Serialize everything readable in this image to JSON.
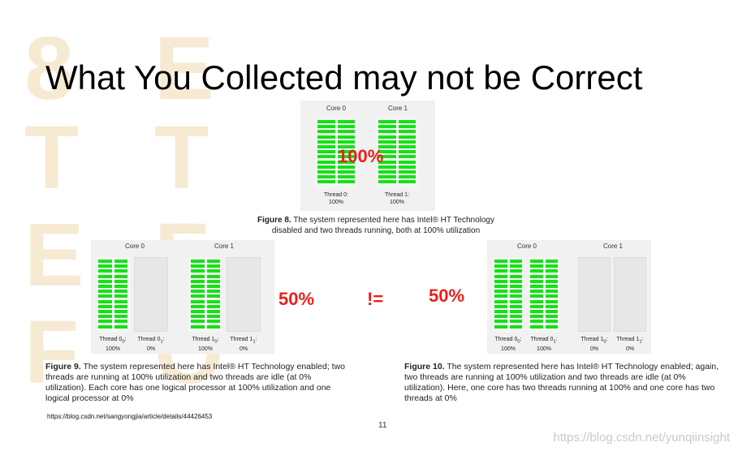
{
  "title": "What You Collected may not be Correct",
  "figure8": {
    "cores": [
      {
        "label": "Core 0",
        "thread_label": "Thread 0:",
        "thread_value": "100%"
      },
      {
        "label": "Core 1",
        "thread_label": "Thread 1:",
        "thread_value": "100%"
      }
    ],
    "overlay_pct": "100%",
    "caption_bold": "Figure 8.",
    "caption_text": " The system represented here has Intel® HT Technology disabled and two threads running, both at 100% utilization",
    "thread_utilization": [
      1.0,
      1.0
    ]
  },
  "figure9": {
    "cores": [
      {
        "label": "Core 0",
        "threads": [
          {
            "label": "Thread 0",
            "sub": "0",
            "value": "100%"
          },
          {
            "label": "Thread 0",
            "sub": "1",
            "value": "0%"
          }
        ]
      },
      {
        "label": "Core 1",
        "threads": [
          {
            "label": "Thread 1",
            "sub": "0",
            "value": "100%"
          },
          {
            "label": "Thread 1",
            "sub": "1",
            "value": "0%"
          }
        ]
      }
    ],
    "caption_bold": "Figure 9.",
    "caption_text": " The system represented here has Intel® HT Technology enabled; two threads are running at 100% utilization and two threads are idle (at 0% utilization). Each core has one logical processor at 100% utilization and one logical processor at 0%",
    "thread_utilization": [
      [
        1.0,
        0.0
      ],
      [
        1.0,
        0.0
      ]
    ]
  },
  "figure10": {
    "cores": [
      {
        "label": "Core 0",
        "threads": [
          {
            "label": "Thread 0",
            "sub": "0",
            "value": "100%"
          },
          {
            "label": "Thread 0",
            "sub": "1",
            "value": "100%"
          }
        ]
      },
      {
        "label": "Core 1",
        "threads": [
          {
            "label": "Thread 1",
            "sub": "0",
            "value": "0%"
          },
          {
            "label": "Thread 1",
            "sub": "1",
            "value": "0%"
          }
        ]
      }
    ],
    "caption_bold": "Figure 10.",
    "caption_text": " The system represented here has Intel® HT Technology enabled; again, two threads are running at 100% utilization and two threads are idle (at 0% utilization). Here, one core has two threads running at 100% and one core has two threads at 0%",
    "thread_utilization": [
      [
        1.0,
        1.0
      ],
      [
        0.0,
        0.0
      ]
    ]
  },
  "comparison": {
    "left_pct": "50%",
    "operator": "!=",
    "right_pct": "50%"
  },
  "url": "https://blog.csdn.net/sangyongjia/article/details/44426453",
  "page_number": "11",
  "watermark": "https://blog.csdn.net/yunqiinsight",
  "colors": {
    "bar": "#15e215",
    "accent_red": "#e8201b",
    "background_text": "#f7ead3"
  }
}
